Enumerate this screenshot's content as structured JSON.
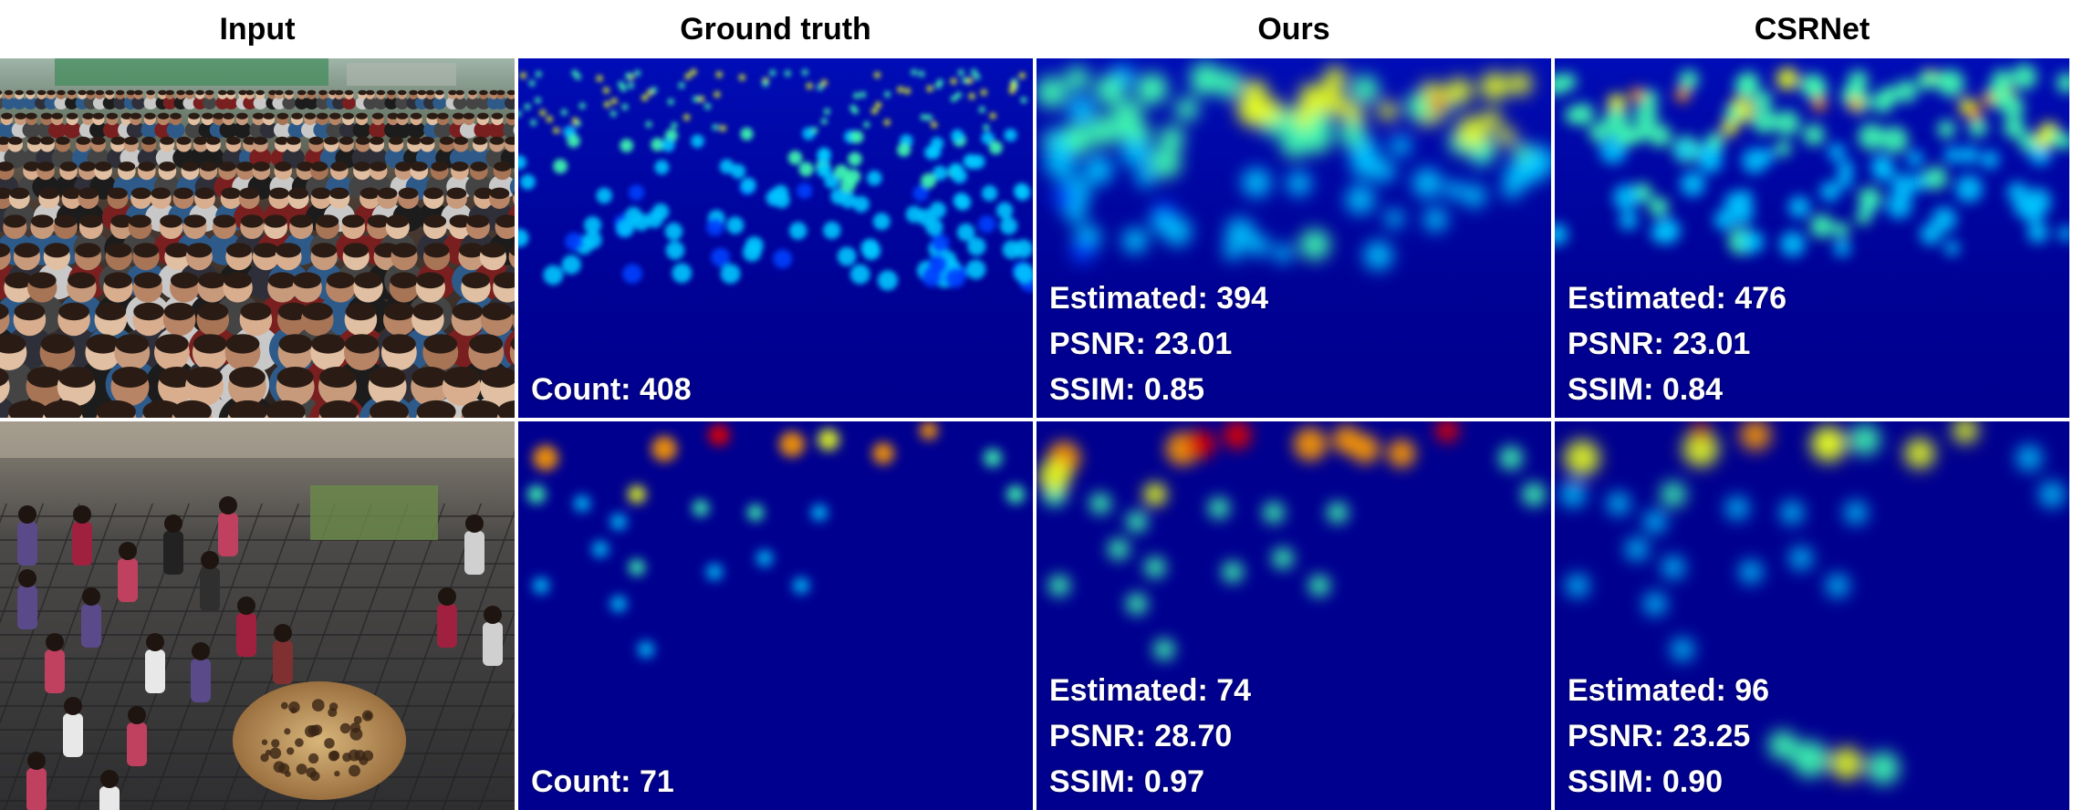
{
  "columns": [
    "Input",
    "Ground truth",
    "Ours",
    "CSRNet"
  ],
  "rows": [
    {
      "ground_truth": {
        "count_label": "Count: 408"
      },
      "ours": {
        "estimated": "Estimated: 394",
        "psnr": "PSNR: 23.01",
        "ssim": "SSIM: 0.85"
      },
      "csrnet": {
        "estimated": "Estimated: 476",
        "psnr": "PSNR: 23.01",
        "ssim": "SSIM: 0.84"
      }
    },
    {
      "ground_truth": {
        "count_label": "Count: 71"
      },
      "ours": {
        "estimated": "Estimated: 74",
        "psnr": "PSNR: 28.70",
        "ssim": "SSIM: 0.97"
      },
      "csrnet": {
        "estimated": "Estimated: 96",
        "psnr": "PSNR: 23.25",
        "ssim": "SSIM: 0.90"
      }
    }
  ],
  "colors": {
    "heatmap_background": "#00008f",
    "separator": "#ffffff"
  }
}
